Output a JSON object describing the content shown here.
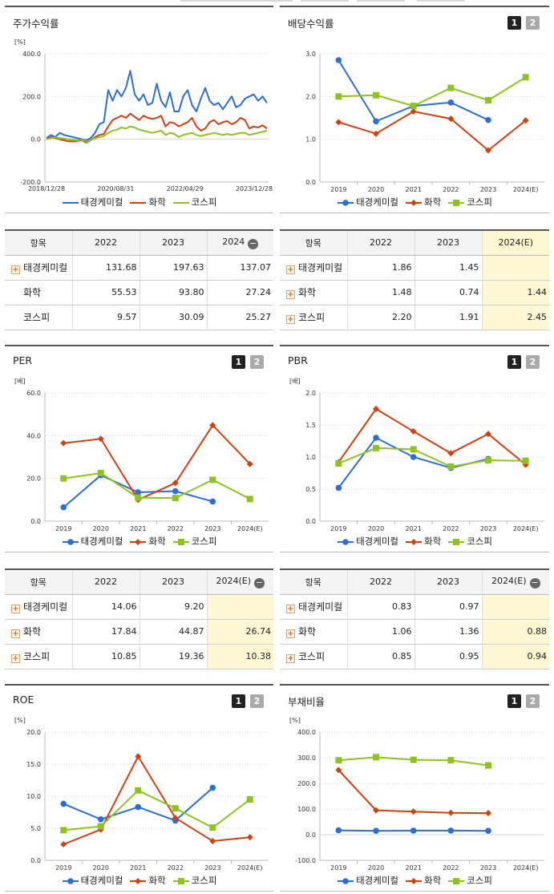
{
  "colors": {
    "태경케미컬": "#2b6fd6",
    "화학": "#d1410f",
    "코스피": "#8fc31f"
  },
  "legend_labels": [
    "태경케미컬",
    "화학",
    "코스피"
  ],
  "panels": {
    "stock_return": {
      "title": "주가수익률",
      "unit": "[%]"
    },
    "dividend": {
      "title": "배당수익률",
      "unit": "",
      "btn1": "1",
      "btn2": "2"
    },
    "per": {
      "title": "PER",
      "unit": "[배]",
      "btn1": "1",
      "btn2": "2"
    },
    "pbr": {
      "title": "PBR",
      "unit": "[배]",
      "btn1": "1",
      "btn2": "2"
    },
    "roe": {
      "title": "ROE",
      "unit": "[%]",
      "btn1": "1",
      "btn2": "2"
    },
    "debt": {
      "title": "부채비율",
      "unit": "[%]",
      "btn1": "1",
      "btn2": "2"
    }
  },
  "tables": {
    "stock_return": {
      "headers": [
        "항목",
        "2022",
        "2023",
        "2024"
      ],
      "collapse_icon": "minus-circle-icon",
      "rows": [
        {
          "name": "태경케미컬",
          "plus": true,
          "v": [
            "131.68",
            "197.63",
            "137.07"
          ]
        },
        {
          "name": "화학",
          "plus": false,
          "v": [
            "55.53",
            "93.80",
            "27.24"
          ]
        },
        {
          "name": "코스피",
          "plus": false,
          "v": [
            "9.57",
            "30.09",
            "25.27"
          ]
        }
      ]
    },
    "dividend": {
      "headers": [
        "항목",
        "2022",
        "2023",
        "2024(E)"
      ],
      "rows": [
        {
          "name": "태경케미컬",
          "plus": true,
          "v": [
            "1.86",
            "1.45",
            ""
          ]
        },
        {
          "name": "화학",
          "plus": true,
          "v": [
            "1.48",
            "0.74",
            "1.44"
          ]
        },
        {
          "name": "코스피",
          "plus": true,
          "v": [
            "2.20",
            "1.91",
            "2.45"
          ]
        }
      ]
    },
    "per": {
      "headers": [
        "항목",
        "2022",
        "2023",
        "2024(E)"
      ],
      "rows": [
        {
          "name": "태경케미컬",
          "plus": true,
          "v": [
            "14.06",
            "9.20",
            ""
          ]
        },
        {
          "name": "화학",
          "plus": true,
          "v": [
            "17.84",
            "44.87",
            "26.74"
          ]
        },
        {
          "name": "코스피",
          "plus": true,
          "v": [
            "10.85",
            "19.36",
            "10.38"
          ]
        }
      ]
    },
    "pbr": {
      "headers": [
        "항목",
        "2022",
        "2023",
        "2024(E)"
      ],
      "rows": [
        {
          "name": "태경케미컬",
          "plus": true,
          "v": [
            "0.83",
            "0.97",
            ""
          ]
        },
        {
          "name": "화학",
          "plus": true,
          "v": [
            "1.06",
            "1.36",
            "0.88"
          ]
        },
        {
          "name": "코스피",
          "plus": true,
          "v": [
            "0.85",
            "0.95",
            "0.94"
          ]
        }
      ]
    }
  },
  "chart_data": [
    {
      "id": "stock_return",
      "type": "line",
      "title": "주가수익률",
      "ylabel": "[%]",
      "ylim": [
        -200,
        400
      ],
      "yticks": [
        "400.0",
        "200.0",
        "0.0",
        "-200.0"
      ],
      "xticks": [
        "2018/12/28",
        "2020/08/31",
        "2022/04/29",
        "2023/12/28"
      ],
      "x": [
        0,
        2,
        4,
        6,
        8,
        10,
        12,
        14,
        16,
        18,
        20,
        22,
        24,
        26,
        28,
        30,
        32,
        34,
        36,
        38,
        40,
        42,
        44,
        46,
        48,
        50,
        52,
        54,
        56,
        58,
        60,
        62,
        64,
        66,
        68,
        70,
        72,
        74,
        76,
        78,
        80,
        82,
        84,
        86,
        88,
        90,
        92,
        94,
        96,
        98,
        100
      ],
      "series": [
        {
          "name": "태경케미컬",
          "values": [
            5,
            20,
            10,
            30,
            20,
            15,
            10,
            5,
            0,
            -5,
            5,
            30,
            70,
            80,
            230,
            180,
            230,
            200,
            240,
            320,
            210,
            180,
            210,
            160,
            170,
            260,
            180,
            150,
            220,
            130,
            130,
            200,
            230,
            160,
            130,
            190,
            240,
            180,
            160,
            170,
            140,
            170,
            200,
            150,
            160,
            190,
            200,
            210,
            180,
            200,
            170
          ]
        },
        {
          "name": "화학",
          "values": [
            0,
            10,
            5,
            0,
            -5,
            -10,
            -10,
            -8,
            -5,
            -15,
            -5,
            10,
            20,
            25,
            60,
            90,
            100,
            110,
            100,
            120,
            105,
            90,
            110,
            100,
            95,
            100,
            110,
            60,
            80,
            75,
            60,
            70,
            80,
            100,
            60,
            40,
            50,
            80,
            90,
            70,
            80,
            85,
            70,
            80,
            100,
            90,
            50,
            60,
            55,
            65,
            50
          ]
        },
        {
          "name": "코스피",
          "values": [
            0,
            5,
            8,
            5,
            3,
            0,
            -2,
            -5,
            -3,
            -10,
            -5,
            5,
            10,
            15,
            30,
            40,
            45,
            55,
            50,
            60,
            55,
            45,
            40,
            35,
            30,
            35,
            40,
            20,
            30,
            25,
            10,
            20,
            25,
            30,
            20,
            15,
            20,
            25,
            30,
            25,
            20,
            25,
            20,
            25,
            30,
            30,
            20,
            25,
            30,
            35,
            40
          ]
        }
      ]
    },
    {
      "id": "dividend",
      "type": "line",
      "title": "배당수익률",
      "ylim": [
        0,
        3
      ],
      "yticks": [
        "3.0",
        "2.0",
        "1.0",
        "0.0"
      ],
      "categories": [
        "2019",
        "2020",
        "2021",
        "2022",
        "2023",
        "2024(E)"
      ],
      "series": [
        {
          "name": "태경케미컬",
          "values": [
            2.85,
            1.42,
            1.78,
            1.86,
            1.45,
            null
          ]
        },
        {
          "name": "화학",
          "values": [
            1.4,
            1.13,
            1.65,
            1.48,
            0.74,
            1.44
          ]
        },
        {
          "name": "코스피",
          "values": [
            2.0,
            2.03,
            1.78,
            2.2,
            1.91,
            2.45
          ]
        }
      ]
    },
    {
      "id": "per",
      "type": "line",
      "title": "PER",
      "ylabel": "[배]",
      "ylim": [
        0,
        60
      ],
      "yticks": [
        "60.0",
        "40.0",
        "20.0",
        "0.0"
      ],
      "categories": [
        "2019",
        "2020",
        "2021",
        "2022",
        "2023",
        "2024(E)"
      ],
      "series": [
        {
          "name": "태경케미컬",
          "values": [
            6.5,
            21.5,
            13.5,
            14.06,
            9.2,
            null
          ]
        },
        {
          "name": "화학",
          "values": [
            36.5,
            38.5,
            10.0,
            17.84,
            44.87,
            26.74
          ]
        },
        {
          "name": "코스피",
          "values": [
            20.0,
            22.5,
            11.0,
            10.85,
            19.36,
            10.38
          ]
        }
      ]
    },
    {
      "id": "pbr",
      "type": "line",
      "title": "PBR",
      "ylabel": "[배]",
      "ylim": [
        0,
        2
      ],
      "yticks": [
        "2.0",
        "1.5",
        "1.0",
        "0.5",
        "0.0"
      ],
      "categories": [
        "2019",
        "2020",
        "2021",
        "2022",
        "2023",
        "2024(E)"
      ],
      "series": [
        {
          "name": "태경케미컬",
          "values": [
            0.52,
            1.3,
            1.0,
            0.83,
            0.97,
            null
          ]
        },
        {
          "name": "화학",
          "values": [
            0.92,
            1.75,
            1.4,
            1.06,
            1.36,
            0.88
          ]
        },
        {
          "name": "코스피",
          "values": [
            0.9,
            1.14,
            1.12,
            0.85,
            0.95,
            0.94
          ]
        }
      ]
    },
    {
      "id": "roe",
      "type": "line",
      "title": "ROE",
      "ylabel": "[%]",
      "ylim": [
        0,
        20
      ],
      "yticks": [
        "20.0",
        "15.0",
        "10.0",
        "5.0",
        "0.0"
      ],
      "categories": [
        "2019",
        "2020",
        "2021",
        "2022",
        "2023",
        "2024(E)"
      ],
      "series": [
        {
          "name": "태경케미컬",
          "values": [
            8.8,
            6.4,
            8.3,
            6.2,
            11.3,
            null
          ]
        },
        {
          "name": "화학",
          "values": [
            2.5,
            4.8,
            16.2,
            6.6,
            3.0,
            3.6
          ]
        },
        {
          "name": "코스피",
          "values": [
            4.7,
            5.3,
            10.9,
            8.1,
            5.1,
            9.5
          ]
        }
      ]
    },
    {
      "id": "debt",
      "type": "line",
      "title": "부채비율",
      "ylabel": "[%]",
      "ylim": [
        -100,
        400
      ],
      "yticks": [
        "400.0",
        "300.0",
        "200.0",
        "100.0",
        "0.0",
        "-100.0"
      ],
      "categories": [
        "2019",
        "2020",
        "2021",
        "2022",
        "2023",
        "2024(E)"
      ],
      "series": [
        {
          "name": "태경케미컬",
          "values": [
            17,
            15,
            16,
            16,
            15,
            null
          ]
        },
        {
          "name": "화학",
          "values": [
            252,
            95,
            90,
            85,
            84,
            null
          ]
        },
        {
          "name": "코스피",
          "values": [
            290,
            302,
            292,
            290,
            270,
            null
          ]
        }
      ]
    }
  ]
}
